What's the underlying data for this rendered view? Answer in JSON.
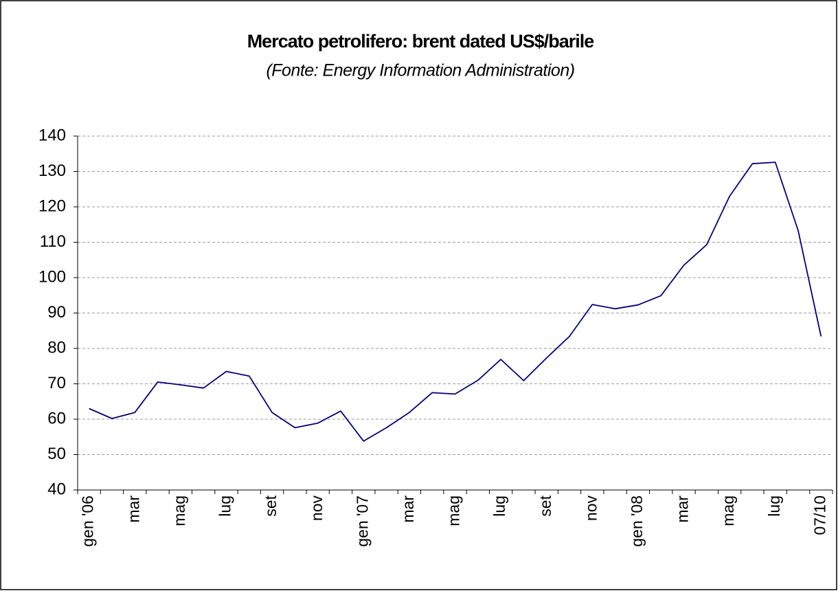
{
  "chart_data": {
    "type": "line",
    "title": "Mercato petrolifero: brent dated US$/barile",
    "subtitle": "(Fonte: Energy Information Administration)",
    "categories": [
      "gen '06",
      null,
      "mar",
      null,
      "mag",
      null,
      "lug",
      null,
      "set",
      null,
      "nov",
      null,
      "gen '07",
      null,
      "mar",
      null,
      "mag",
      null,
      "lug",
      null,
      "set",
      null,
      "nov",
      null,
      "gen '08",
      null,
      "mar",
      null,
      "mag",
      null,
      "lug",
      null,
      "07/10"
    ],
    "series": [
      {
        "name": "brent dated",
        "color": "#000080",
        "values": [
          63,
          60.2,
          61.9,
          70.5,
          69.7,
          68.8,
          73.5,
          72.2,
          61.9,
          57.6,
          58.9,
          62.3,
          53.8,
          57.6,
          61.9,
          67.5,
          67.1,
          71.0,
          76.9,
          70.9,
          77.3,
          83.4,
          92.4,
          91.2,
          92.3,
          94.9,
          103.5,
          109.3,
          123,
          132.2,
          132.6,
          113.3,
          83.4
        ]
      }
    ],
    "ylim": [
      40,
      140
    ],
    "yticks": [
      40,
      50,
      60,
      70,
      80,
      90,
      100,
      110,
      120,
      130,
      140
    ],
    "grid": true
  }
}
